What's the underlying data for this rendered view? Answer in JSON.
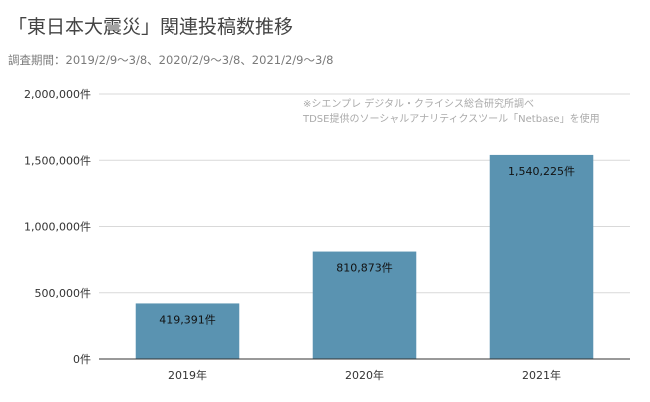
{
  "title": "「東日本大震災」関連投稿数推移",
  "subtitle": "調査期間：2019/2/9〜3/8、2020/2/9〜3/8、2021/2/9〜3/8",
  "note": {
    "line1": "※シエンプレ デジタル・クライシス総合研究所調べ",
    "line2": "TDSE提供のソーシャルアナリティクスツール「Netbase」を使用"
  },
  "colors": {
    "bar": "#5a93b1",
    "grid": "#d9d9d9",
    "axis": "#333333"
  },
  "chart_data": {
    "type": "bar",
    "title": "「東日本大震災」関連投稿数推移",
    "subtitle": "調査期間：2019/2/9〜3/8、2020/2/9〜3/8、2021/2/9〜3/8",
    "categories": [
      "2019年",
      "2020年",
      "2021年"
    ],
    "values": [
      419391,
      810873,
      1540225
    ],
    "data_labels": [
      "419,391件",
      "810,873件",
      "1,540,225件"
    ],
    "ylim": [
      0,
      2000000
    ],
    "yticks": [
      0,
      500000,
      1000000,
      1500000,
      2000000
    ],
    "ytick_labels": [
      "0件",
      "500,000件",
      "1,000,000件",
      "1,500,000件",
      "2,000,000件"
    ],
    "grid": true,
    "legend": "none"
  }
}
